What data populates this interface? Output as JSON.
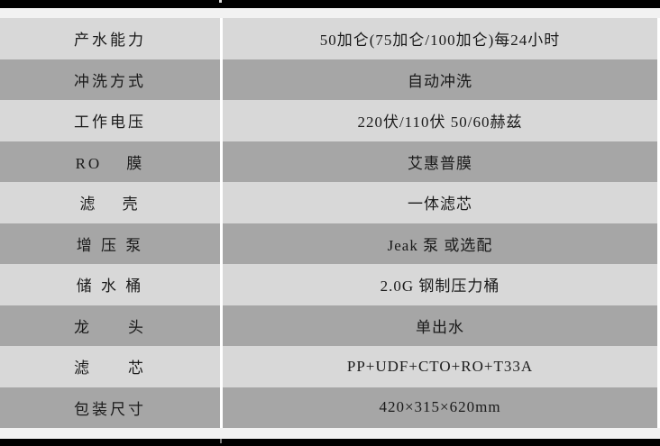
{
  "table": {
    "rows": [
      {
        "label": "产水能力",
        "value": "50加仑(75加仑/100加仑)每24小时"
      },
      {
        "label": "冲洗方式",
        "value": "自动冲洗"
      },
      {
        "label": "工作电压",
        "value": "220伏/110伏 50/60赫兹"
      },
      {
        "label": "RO　 膜",
        "value": "艾惠普膜"
      },
      {
        "label": "滤　 壳",
        "value": "一体滤芯"
      },
      {
        "label": "增 压 泵",
        "value": "Jeak 泵 或选配"
      },
      {
        "label": "储 水 桶",
        "value": "2.0G 钢制压力桶"
      },
      {
        "label": "龙　　头",
        "value": "单出水"
      },
      {
        "label": "滤　　芯",
        "value": "PP+UDF+CTO+RO+T33A"
      },
      {
        "label": "包装尺寸",
        "value": "420×315×620mm"
      }
    ]
  },
  "colors": {
    "row_light": "#d8d8d8",
    "row_dark": "#a6a6a6",
    "strip": "#f2f2f2",
    "bar": "#000000",
    "divider": "#ffffff",
    "text": "#1a1a1a"
  }
}
